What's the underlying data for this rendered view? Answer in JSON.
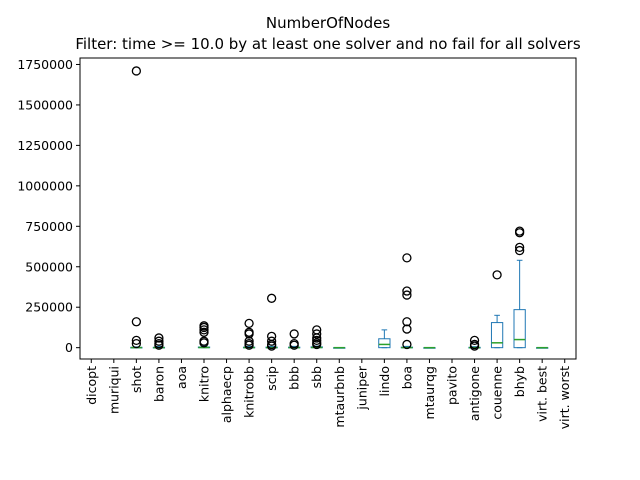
{
  "chart_data": {
    "type": "box",
    "title": "NumberOfNodes",
    "subtitle": "Filter: time >= 10.0 by at least one solver and no fail for all solvers",
    "xlabel": "",
    "ylabel": "",
    "ylim": [
      -70000,
      1790000
    ],
    "y_ticks": [
      0,
      250000,
      500000,
      750000,
      1000000,
      1250000,
      1500000,
      1750000
    ],
    "y_tick_labels": [
      "0",
      "250000",
      "500000",
      "750000",
      "1000000",
      "1250000",
      "1500000",
      "1750000"
    ],
    "grid": false,
    "legend": "none",
    "colors": {
      "box": "#1f77b4",
      "median": "#2ca02c",
      "outlier": "#000000",
      "axis": "#000000"
    },
    "categories": [
      "dicopt",
      "muriqui",
      "shot",
      "baron",
      "aoa",
      "knitro",
      "alphaecp",
      "knitrobb",
      "scip",
      "bbb",
      "sbb",
      "mtaurbnb",
      "juniper",
      "lindo",
      "boa",
      "mtaurqg",
      "pavito",
      "antigone",
      "couenne",
      "bhyb",
      "virt. best",
      "virt. worst"
    ],
    "boxes": [
      {
        "name": "dicopt",
        "empty": true
      },
      {
        "name": "muriqui",
        "empty": true
      },
      {
        "name": "shot",
        "whislo": 0,
        "q1": 0,
        "med": 500,
        "q3": 2000,
        "whishi": 5000,
        "fliers": [
          1710000,
          160000,
          45000,
          25000
        ]
      },
      {
        "name": "baron",
        "whislo": 0,
        "q1": 0,
        "med": 300,
        "q3": 2000,
        "whishi": 8000,
        "fliers": [
          60000,
          40000,
          25000,
          15000
        ]
      },
      {
        "name": "aoa",
        "empty": true
      },
      {
        "name": "knitro",
        "whislo": 0,
        "q1": 0,
        "med": 1000,
        "q3": 4000,
        "whishi": 10000,
        "fliers": [
          135000,
          125000,
          110000,
          95000,
          40000,
          30000
        ]
      },
      {
        "name": "alphaecp",
        "empty": true
      },
      {
        "name": "knitrobb",
        "whislo": 0,
        "q1": 0,
        "med": 500,
        "q3": 3000,
        "whishi": 8000,
        "fliers": [
          150000,
          95000,
          85000,
          40000,
          25000,
          15000
        ]
      },
      {
        "name": "scip",
        "whislo": 0,
        "q1": 0,
        "med": 500,
        "q3": 3000,
        "whishi": 8000,
        "fliers": [
          305000,
          70000,
          40000,
          20000,
          10000
        ]
      },
      {
        "name": "bbb",
        "whislo": 0,
        "q1": 0,
        "med": 500,
        "q3": 3000,
        "whishi": 8000,
        "fliers": [
          85000,
          25000,
          15000
        ]
      },
      {
        "name": "sbb",
        "whislo": 0,
        "q1": 0,
        "med": 1000,
        "q3": 5000,
        "whishi": 10000,
        "fliers": [
          110000,
          85000,
          60000,
          45000,
          30000,
          20000
        ]
      },
      {
        "name": "mtaurbnb",
        "whislo": 0,
        "q1": 0,
        "med": 0,
        "q3": 0,
        "whishi": 0,
        "fliers": []
      },
      {
        "name": "juniper",
        "empty": true
      },
      {
        "name": "lindo",
        "whislo": 0,
        "q1": 0,
        "med": 20000,
        "q3": 55000,
        "whishi": 110000,
        "fliers": []
      },
      {
        "name": "boa",
        "whislo": 0,
        "q1": 0,
        "med": 500,
        "q3": 3000,
        "whishi": 8000,
        "fliers": [
          555000,
          350000,
          325000,
          160000,
          115000,
          20000
        ]
      },
      {
        "name": "mtaurqg",
        "whislo": 0,
        "q1": 0,
        "med": 0,
        "q3": 0,
        "whishi": 0,
        "fliers": []
      },
      {
        "name": "pavito",
        "empty": true
      },
      {
        "name": "antigone",
        "whislo": 0,
        "q1": 0,
        "med": 300,
        "q3": 2000,
        "whishi": 6000,
        "fliers": [
          45000,
          20000,
          10000
        ]
      },
      {
        "name": "couenne",
        "whislo": 0,
        "q1": 0,
        "med": 30000,
        "q3": 155000,
        "whishi": 200000,
        "fliers": [
          450000
        ]
      },
      {
        "name": "bhyb",
        "whislo": 0,
        "q1": 0,
        "med": 50000,
        "q3": 235000,
        "whishi": 540000,
        "fliers": [
          720000,
          710000,
          620000,
          600000
        ]
      },
      {
        "name": "virt. best",
        "whislo": 0,
        "q1": 0,
        "med": 0,
        "q3": 0,
        "whishi": 0,
        "fliers": []
      },
      {
        "name": "virt. worst",
        "empty": true
      }
    ]
  }
}
